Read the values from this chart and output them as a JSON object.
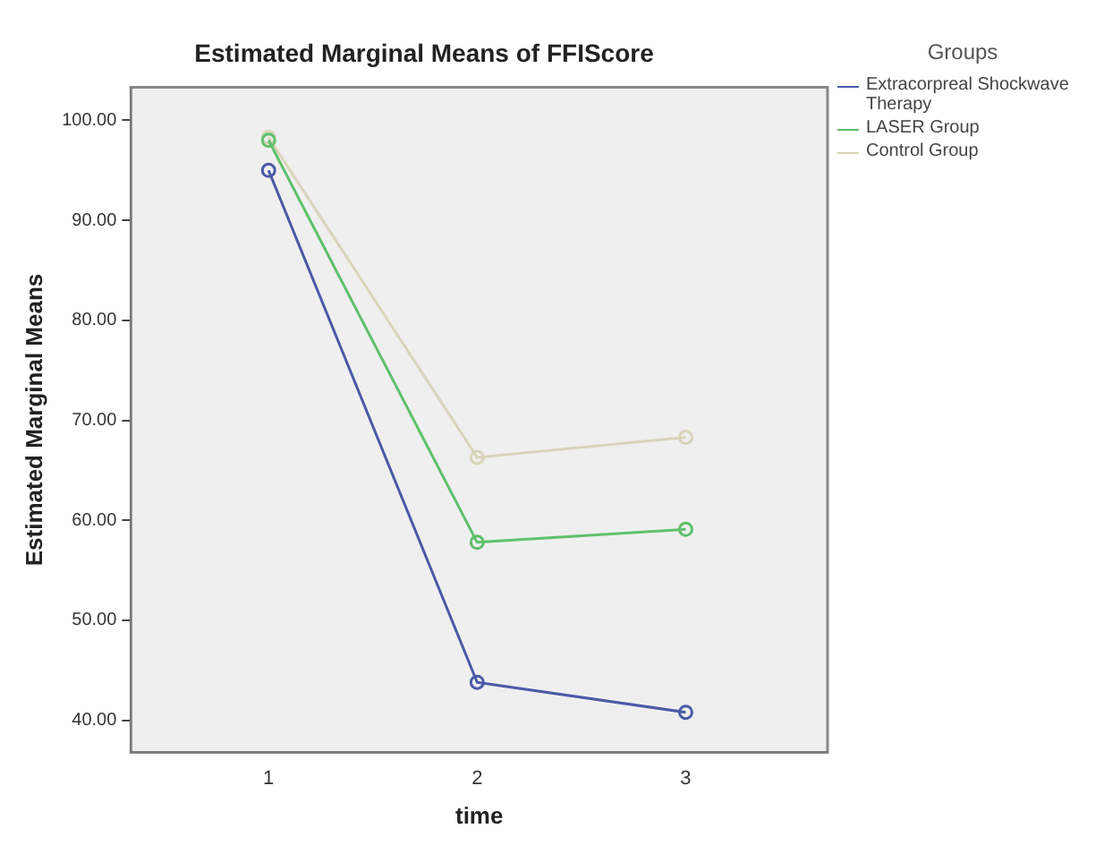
{
  "chart_data": {
    "type": "line",
    "title": "Estimated Marginal Means of FFIScore",
    "xlabel": "time",
    "ylabel": "Estimated Marginal Means",
    "legend_title": "Groups",
    "legend": "top right",
    "grid": false,
    "marker": "circle",
    "line_style": "solid",
    "x": [
      1,
      2,
      3
    ],
    "xlim": [
      0.34,
      3.68
    ],
    "xticks": [
      1,
      2,
      3
    ],
    "ylim": [
      36.8,
      103.3
    ],
    "yticks": [
      {
        "value": 40,
        "label": "40.00"
      },
      {
        "value": 50,
        "label": "50.00"
      },
      {
        "value": 60,
        "label": "60.00"
      },
      {
        "value": 70,
        "label": "70.00"
      },
      {
        "value": 80,
        "label": "80.00"
      },
      {
        "value": 90,
        "label": "90.00"
      },
      {
        "value": 100,
        "label": "100.00"
      }
    ],
    "series": [
      {
        "name": "Extracorpreal Shockwave Therapy",
        "color": "#4a5aa8",
        "values": [
          95.0,
          43.8,
          40.8
        ]
      },
      {
        "name": "LASER Group",
        "color": "#5fc06a",
        "values": [
          98.0,
          57.8,
          59.1
        ]
      },
      {
        "name": "Control Group",
        "color": "#d8d4b8",
        "values": [
          98.3,
          66.3,
          68.3
        ]
      }
    ]
  }
}
